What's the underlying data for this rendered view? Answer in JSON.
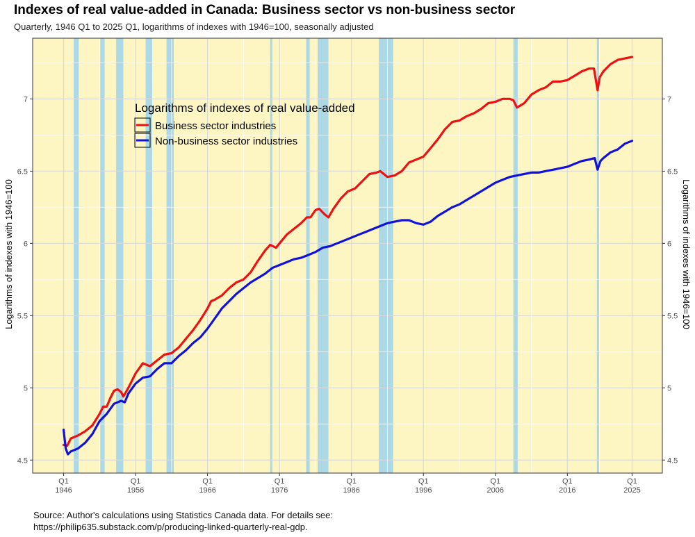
{
  "title": "Indexes of real value-added in Canada: Business sector vs non-business sector",
  "subtitle": "Quarterly, 1946 Q1 to 2025 Q1, logarithms of indexes with 1946=100, seasonally adjusted",
  "caption": {
    "line1": "Source: Author's calculations using Statistics Canada data. For details see:",
    "line2": "https://philip635.substack.com/p/producing-linked-quarterly-real-gdp."
  },
  "chart_data": {
    "type": "line",
    "ylabel_left": "Logarithms of indexes with 1946=100",
    "ylabel_right": "Logarithms of indexes with 1946=100",
    "xlim": [
      1941.7,
      2029.2
    ],
    "ylim": [
      4.41,
      7.42
    ],
    "y_ticks": [
      {
        "value": 4.5,
        "label": "4.5"
      },
      {
        "value": 5,
        "label": "5"
      },
      {
        "value": 5.5,
        "label": "5.5"
      },
      {
        "value": 6,
        "label": "6"
      },
      {
        "value": 6.5,
        "label": "6.5"
      },
      {
        "value": 7,
        "label": "7"
      }
    ],
    "x_ticks": [
      {
        "value": 1946,
        "q": "Q1",
        "year": "1946"
      },
      {
        "value": 1956,
        "q": "Q1",
        "year": "1956"
      },
      {
        "value": 1966,
        "q": "Q1",
        "year": "1966"
      },
      {
        "value": 1976,
        "q": "Q1",
        "year": "1976"
      },
      {
        "value": 1986,
        "q": "Q1",
        "year": "1986"
      },
      {
        "value": 1996,
        "q": "Q1",
        "year": "1996"
      },
      {
        "value": 2006,
        "q": "Q1",
        "year": "2006"
      },
      {
        "value": 2016,
        "q": "Q1",
        "year": "2016"
      },
      {
        "value": 2025,
        "q": "Q1",
        "year": "2025"
      }
    ],
    "recessions": [
      [
        1947.4,
        1948.1
      ],
      [
        1951.1,
        1951.7
      ],
      [
        1953.3,
        1954.3
      ],
      [
        1957.4,
        1958.3
      ],
      [
        1960.3,
        1961.3
      ],
      [
        1974.7,
        1975.0
      ],
      [
        1979.7,
        1980.2
      ],
      [
        1981.3,
        1982.8
      ],
      [
        1989.8,
        1991.8
      ],
      [
        2008.5,
        2009.1
      ],
      [
        2020.1,
        2020.4
      ]
    ],
    "grid": true,
    "legend": {
      "title": "Logarithms of indexes of real value-added",
      "position": "top-left"
    },
    "colors": {
      "panel_background": "#fdf6c3",
      "recession_band": "#add8e6",
      "grid": "#d9d9d9"
    },
    "series": [
      {
        "name": "Business sector industries",
        "color": "#ee1111",
        "points": [
          [
            1946.0,
            4.605
          ],
          [
            1946.5,
            4.6
          ],
          [
            1947.0,
            4.65
          ],
          [
            1948.0,
            4.67
          ],
          [
            1949.0,
            4.7
          ],
          [
            1950.0,
            4.74
          ],
          [
            1951.0,
            4.82
          ],
          [
            1951.5,
            4.87
          ],
          [
            1952.0,
            4.87
          ],
          [
            1952.5,
            4.93
          ],
          [
            1953.0,
            4.98
          ],
          [
            1953.5,
            4.99
          ],
          [
            1954.0,
            4.97
          ],
          [
            1954.3,
            4.94
          ],
          [
            1955.0,
            5.0
          ],
          [
            1956.0,
            5.1
          ],
          [
            1957.0,
            5.17
          ],
          [
            1957.5,
            5.16
          ],
          [
            1958.0,
            5.15
          ],
          [
            1959.0,
            5.19
          ],
          [
            1960.0,
            5.23
          ],
          [
            1961.0,
            5.24
          ],
          [
            1962.0,
            5.28
          ],
          [
            1963.0,
            5.34
          ],
          [
            1964.0,
            5.4
          ],
          [
            1965.0,
            5.47
          ],
          [
            1966.0,
            5.55
          ],
          [
            1966.5,
            5.6
          ],
          [
            1967.0,
            5.61
          ],
          [
            1968.0,
            5.64
          ],
          [
            1969.0,
            5.69
          ],
          [
            1970.0,
            5.73
          ],
          [
            1971.0,
            5.75
          ],
          [
            1972.0,
            5.8
          ],
          [
            1973.0,
            5.88
          ],
          [
            1974.0,
            5.95
          ],
          [
            1974.7,
            5.99
          ],
          [
            1975.5,
            5.97
          ],
          [
            1976.0,
            6.0
          ],
          [
            1977.0,
            6.06
          ],
          [
            1978.0,
            6.1
          ],
          [
            1979.0,
            6.14
          ],
          [
            1979.8,
            6.18
          ],
          [
            1980.3,
            6.18
          ],
          [
            1981.0,
            6.23
          ],
          [
            1981.5,
            6.24
          ],
          [
            1982.3,
            6.2
          ],
          [
            1982.8,
            6.18
          ],
          [
            1983.5,
            6.24
          ],
          [
            1984.5,
            6.31
          ],
          [
            1985.5,
            6.36
          ],
          [
            1986.5,
            6.38
          ],
          [
            1987.5,
            6.43
          ],
          [
            1988.5,
            6.48
          ],
          [
            1989.5,
            6.49
          ],
          [
            1990.0,
            6.5
          ],
          [
            1991.0,
            6.46
          ],
          [
            1992.0,
            6.47
          ],
          [
            1993.0,
            6.5
          ],
          [
            1994.0,
            6.56
          ],
          [
            1995.0,
            6.58
          ],
          [
            1996.0,
            6.6
          ],
          [
            1997.0,
            6.66
          ],
          [
            1998.0,
            6.72
          ],
          [
            1999.0,
            6.79
          ],
          [
            2000.0,
            6.84
          ],
          [
            2001.0,
            6.85
          ],
          [
            2002.0,
            6.88
          ],
          [
            2003.0,
            6.9
          ],
          [
            2004.0,
            6.93
          ],
          [
            2005.0,
            6.97
          ],
          [
            2006.0,
            6.98
          ],
          [
            2007.0,
            7.0
          ],
          [
            2008.0,
            7.0
          ],
          [
            2008.5,
            6.99
          ],
          [
            2009.0,
            6.94
          ],
          [
            2010.0,
            6.97
          ],
          [
            2011.0,
            7.03
          ],
          [
            2012.0,
            7.06
          ],
          [
            2013.0,
            7.08
          ],
          [
            2014.0,
            7.12
          ],
          [
            2015.0,
            7.12
          ],
          [
            2016.0,
            7.13
          ],
          [
            2017.0,
            7.16
          ],
          [
            2018.0,
            7.19
          ],
          [
            2019.0,
            7.21
          ],
          [
            2019.7,
            7.21
          ],
          [
            2020.2,
            7.06
          ],
          [
            2020.5,
            7.15
          ],
          [
            2021.0,
            7.19
          ],
          [
            2022.0,
            7.24
          ],
          [
            2023.0,
            7.27
          ],
          [
            2024.0,
            7.28
          ],
          [
            2025.0,
            7.29
          ]
        ]
      },
      {
        "name": "Non-business sector industries",
        "color": "#1111dd",
        "points": [
          [
            1946.0,
            4.71
          ],
          [
            1946.3,
            4.58
          ],
          [
            1946.6,
            4.54
          ],
          [
            1947.0,
            4.56
          ],
          [
            1948.0,
            4.58
          ],
          [
            1949.0,
            4.62
          ],
          [
            1950.0,
            4.68
          ],
          [
            1951.0,
            4.77
          ],
          [
            1952.0,
            4.82
          ],
          [
            1953.0,
            4.89
          ],
          [
            1954.0,
            4.91
          ],
          [
            1954.5,
            4.9
          ],
          [
            1955.0,
            4.96
          ],
          [
            1956.0,
            5.03
          ],
          [
            1957.0,
            5.07
          ],
          [
            1958.0,
            5.08
          ],
          [
            1959.0,
            5.13
          ],
          [
            1960.0,
            5.17
          ],
          [
            1961.0,
            5.17
          ],
          [
            1962.0,
            5.22
          ],
          [
            1963.0,
            5.26
          ],
          [
            1964.0,
            5.31
          ],
          [
            1965.0,
            5.35
          ],
          [
            1966.0,
            5.41
          ],
          [
            1967.0,
            5.48
          ],
          [
            1968.0,
            5.55
          ],
          [
            1969.0,
            5.6
          ],
          [
            1970.0,
            5.65
          ],
          [
            1971.0,
            5.69
          ],
          [
            1972.0,
            5.73
          ],
          [
            1973.0,
            5.76
          ],
          [
            1974.0,
            5.79
          ],
          [
            1975.0,
            5.83
          ],
          [
            1976.0,
            5.85
          ],
          [
            1977.0,
            5.87
          ],
          [
            1978.0,
            5.89
          ],
          [
            1979.0,
            5.9
          ],
          [
            1980.0,
            5.92
          ],
          [
            1981.0,
            5.94
          ],
          [
            1982.0,
            5.97
          ],
          [
            1983.0,
            5.98
          ],
          [
            1984.0,
            6.0
          ],
          [
            1985.0,
            6.02
          ],
          [
            1986.0,
            6.04
          ],
          [
            1987.0,
            6.06
          ],
          [
            1988.0,
            6.08
          ],
          [
            1989.0,
            6.1
          ],
          [
            1990.0,
            6.12
          ],
          [
            1991.0,
            6.14
          ],
          [
            1992.0,
            6.15
          ],
          [
            1993.0,
            6.16
          ],
          [
            1994.0,
            6.16
          ],
          [
            1995.0,
            6.14
          ],
          [
            1996.0,
            6.13
          ],
          [
            1997.0,
            6.15
          ],
          [
            1998.0,
            6.19
          ],
          [
            1999.0,
            6.22
          ],
          [
            2000.0,
            6.25
          ],
          [
            2001.0,
            6.27
          ],
          [
            2002.0,
            6.3
          ],
          [
            2003.0,
            6.33
          ],
          [
            2004.0,
            6.36
          ],
          [
            2005.0,
            6.39
          ],
          [
            2006.0,
            6.42
          ],
          [
            2007.0,
            6.44
          ],
          [
            2008.0,
            6.46
          ],
          [
            2009.0,
            6.47
          ],
          [
            2010.0,
            6.48
          ],
          [
            2011.0,
            6.49
          ],
          [
            2012.0,
            6.49
          ],
          [
            2013.0,
            6.5
          ],
          [
            2014.0,
            6.51
          ],
          [
            2015.0,
            6.52
          ],
          [
            2016.0,
            6.53
          ],
          [
            2017.0,
            6.55
          ],
          [
            2018.0,
            6.57
          ],
          [
            2019.0,
            6.58
          ],
          [
            2019.8,
            6.59
          ],
          [
            2020.2,
            6.51
          ],
          [
            2020.6,
            6.57
          ],
          [
            2021.0,
            6.59
          ],
          [
            2022.0,
            6.63
          ],
          [
            2023.0,
            6.65
          ],
          [
            2024.0,
            6.69
          ],
          [
            2025.0,
            6.71
          ]
        ]
      }
    ]
  }
}
